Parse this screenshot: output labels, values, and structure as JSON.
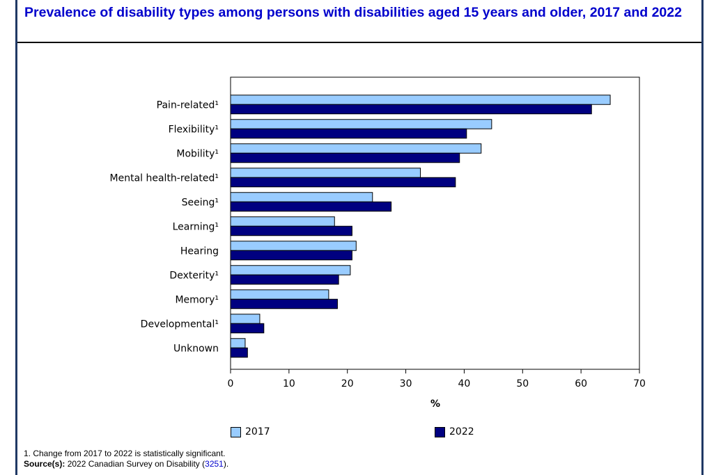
{
  "title": "Prevalence of disability types among persons with disabilities aged 15 years and older, 2017 and 2022",
  "chart_data": {
    "type": "bar",
    "orientation": "horizontal",
    "categories": [
      "Pain-related¹",
      "Flexibility¹",
      "Mobility¹",
      "Mental health-related¹",
      "Seeing¹",
      "Learning¹",
      "Hearing",
      "Dexterity¹",
      "Memory¹",
      "Developmental¹",
      "Unknown"
    ],
    "series": [
      {
        "name": "2017",
        "color": "#99ccff",
        "values": [
          65.0,
          44.7,
          42.9,
          32.5,
          24.3,
          17.8,
          21.5,
          20.5,
          16.8,
          5.0,
          2.5
        ]
      },
      {
        "name": "2022",
        "color": "#000080",
        "values": [
          61.8,
          40.4,
          39.2,
          38.5,
          27.5,
          20.8,
          20.8,
          18.5,
          18.3,
          5.7,
          2.9
        ]
      }
    ],
    "xlabel": "%",
    "xlim": [
      0,
      70
    ],
    "xticks": [
      0,
      10,
      20,
      30,
      40,
      50,
      60,
      70
    ],
    "grid": false,
    "legend_position": "bottom"
  },
  "footnote": "1. Change from 2017 to 2022 is statistically significant.",
  "source_label": "Source(s):",
  "source_text": "2022 Canadian Survey on Disability (",
  "source_link": "3251",
  "source_close": ")."
}
